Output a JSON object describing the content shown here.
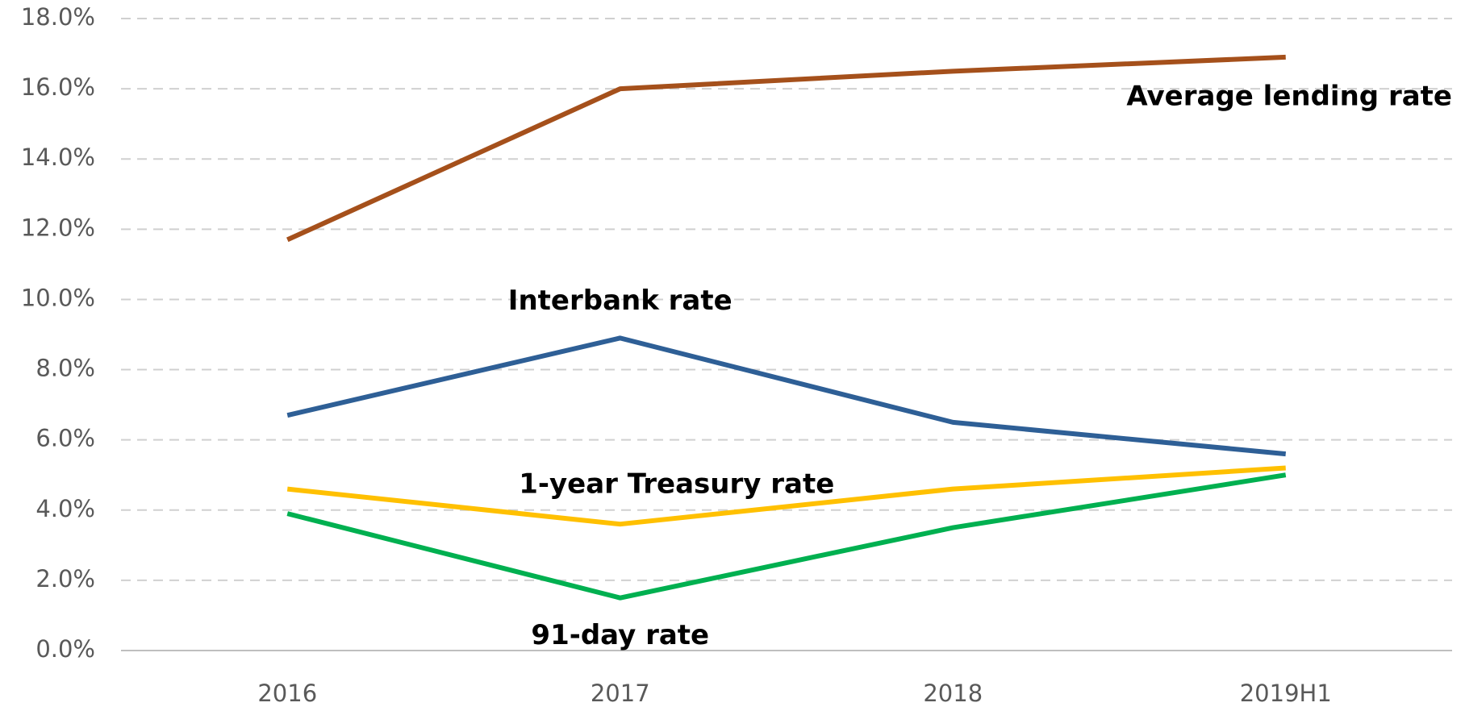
{
  "chart_data": {
    "type": "line",
    "categories": [
      "2016",
      "2017",
      "2018",
      "2019H1"
    ],
    "series": [
      {
        "name": "Average lending rate",
        "color": "#a5501b",
        "values": [
          11.7,
          16.0,
          16.5,
          16.9
        ]
      },
      {
        "name": "Interbank rate",
        "color": "#2e5f96",
        "values": [
          6.7,
          8.9,
          6.5,
          5.6
        ]
      },
      {
        "name": "1-year Treasury rate",
        "color": "#ffc000",
        "values": [
          4.6,
          3.6,
          4.6,
          5.2
        ]
      },
      {
        "name": "91-day rate",
        "color": "#00b050",
        "values": [
          3.9,
          1.5,
          3.5,
          5.0
        ]
      }
    ],
    "ylim": [
      0,
      18
    ],
    "yticks": [
      {
        "value": 0,
        "label": "0.0%"
      },
      {
        "value": 2,
        "label": "2.0%"
      },
      {
        "value": 4,
        "label": "4.0%"
      },
      {
        "value": 6,
        "label": "6.0%"
      },
      {
        "value": 8,
        "label": "8.0%"
      },
      {
        "value": 10,
        "label": "10.0%"
      },
      {
        "value": 12,
        "label": "12.0%"
      },
      {
        "value": 14,
        "label": "14.0%"
      },
      {
        "value": 16,
        "label": "16.0%"
      },
      {
        "value": 18,
        "label": "18.0%"
      }
    ],
    "grid": true
  }
}
